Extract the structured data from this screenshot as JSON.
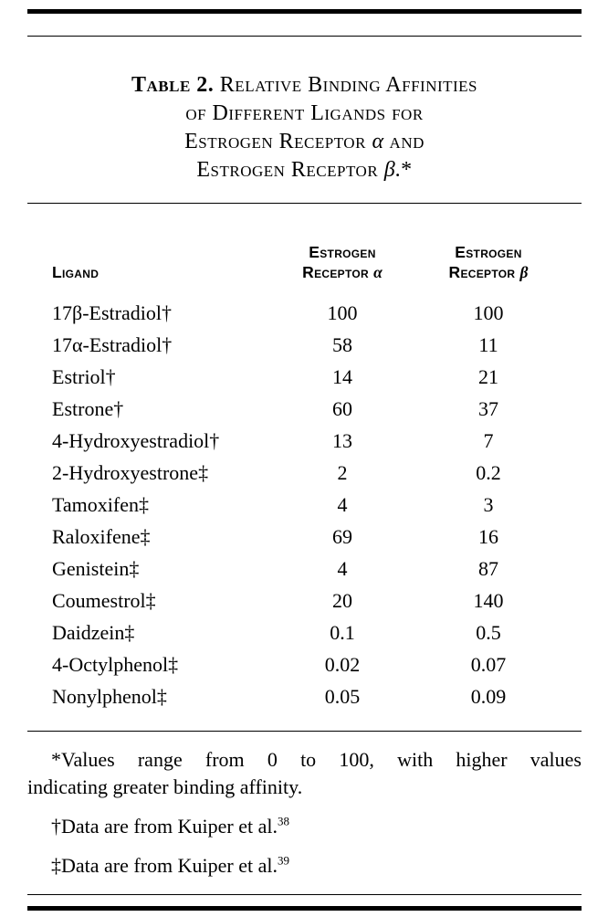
{
  "page": {
    "background_color": "#ffffff",
    "text_color": "#000000",
    "rule_color": "#000000"
  },
  "table": {
    "title_lines": [
      [
        {
          "text": "Table 2. ",
          "style": "label"
        },
        {
          "text": "Relative Binding Affinities",
          "style": "caps"
        }
      ],
      [
        {
          "text": "of Different Ligands for",
          "style": "caps"
        }
      ],
      [
        {
          "text": "Estrogen Receptor ",
          "style": "caps"
        },
        {
          "text": "α",
          "style": "greek"
        },
        {
          "text": " and",
          "style": "caps"
        }
      ],
      [
        {
          "text": "Estrogen Receptor ",
          "style": "caps"
        },
        {
          "text": "β",
          "style": "greek"
        },
        {
          "text": ".*",
          "style": "caps"
        }
      ]
    ],
    "columns": [
      {
        "lines": [
          [
            {
              "text": "Ligand",
              "style": "caps"
            }
          ]
        ]
      },
      {
        "lines": [
          [
            {
              "text": "Estrogen",
              "style": "caps"
            }
          ],
          [
            {
              "text": "Receptor ",
              "style": "caps"
            },
            {
              "text": "α",
              "style": "greek"
            }
          ]
        ]
      },
      {
        "lines": [
          [
            {
              "text": "Estrogen",
              "style": "caps"
            }
          ],
          [
            {
              "text": "Receptor ",
              "style": "caps"
            },
            {
              "text": "β",
              "style": "greek"
            }
          ]
        ]
      }
    ],
    "rows": [
      {
        "ligand": "17β-Estradiol†",
        "er_alpha": "100",
        "er_beta": "100"
      },
      {
        "ligand": "17α-Estradiol†",
        "er_alpha": "58",
        "er_beta": "11"
      },
      {
        "ligand": "Estriol†",
        "er_alpha": "14",
        "er_beta": "21"
      },
      {
        "ligand": "Estrone†",
        "er_alpha": "60",
        "er_beta": "37"
      },
      {
        "ligand": "4-Hydroxyestradiol†",
        "er_alpha": "13",
        "er_beta": "7"
      },
      {
        "ligand": "2-Hydroxyestrone‡",
        "er_alpha": "2",
        "er_beta": "0.2"
      },
      {
        "ligand": "Tamoxifen‡",
        "er_alpha": "4",
        "er_beta": "3"
      },
      {
        "ligand": "Raloxifene‡",
        "er_alpha": "69",
        "er_beta": "16"
      },
      {
        "ligand": "Genistein‡",
        "er_alpha": "4",
        "er_beta": "87"
      },
      {
        "ligand": "Coumestrol‡",
        "er_alpha": "20",
        "er_beta": "140"
      },
      {
        "ligand": "Daidzein‡",
        "er_alpha": "0.1",
        "er_beta": "0.5"
      },
      {
        "ligand": "4-Octylphenol‡",
        "er_alpha": "0.02",
        "er_beta": "0.07"
      },
      {
        "ligand": "Nonylphenol‡",
        "er_alpha": "0.05",
        "er_beta": "0.09"
      }
    ],
    "footnotes": [
      {
        "marker": "*",
        "lines": [
          "Values range from 0 to 100, with higher values",
          "indicating greater binding affinity."
        ],
        "ref": ""
      },
      {
        "marker": "†",
        "lines": [
          "Data are from Kuiper et al."
        ],
        "ref": "38"
      },
      {
        "marker": "‡",
        "lines": [
          "Data are from Kuiper et al."
        ],
        "ref": "39"
      }
    ]
  }
}
